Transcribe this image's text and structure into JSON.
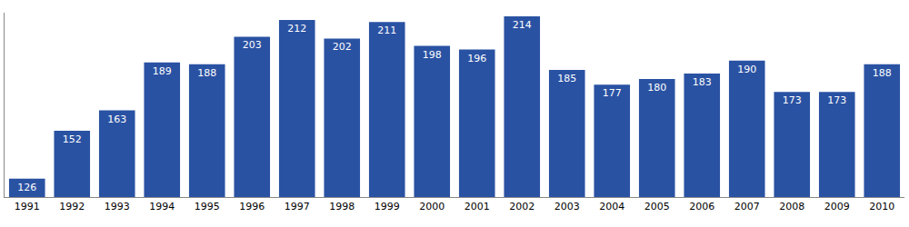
{
  "chart_data": {
    "type": "bar",
    "categories": [
      "1991",
      "1992",
      "1993",
      "1994",
      "1995",
      "1996",
      "1997",
      "1998",
      "1999",
      "2000",
      "2001",
      "2002",
      "2003",
      "2004",
      "2005",
      "2006",
      "2007",
      "2008",
      "2009",
      "2010"
    ],
    "values": [
      126,
      152,
      163,
      189,
      188,
      203,
      212,
      202,
      211,
      198,
      196,
      214,
      185,
      177,
      180,
      183,
      190,
      173,
      173,
      188
    ],
    "color": "#2a52a3",
    "ylim": [
      116,
      216
    ],
    "grid": false,
    "data_labels": true,
    "tick_labels": "x"
  }
}
